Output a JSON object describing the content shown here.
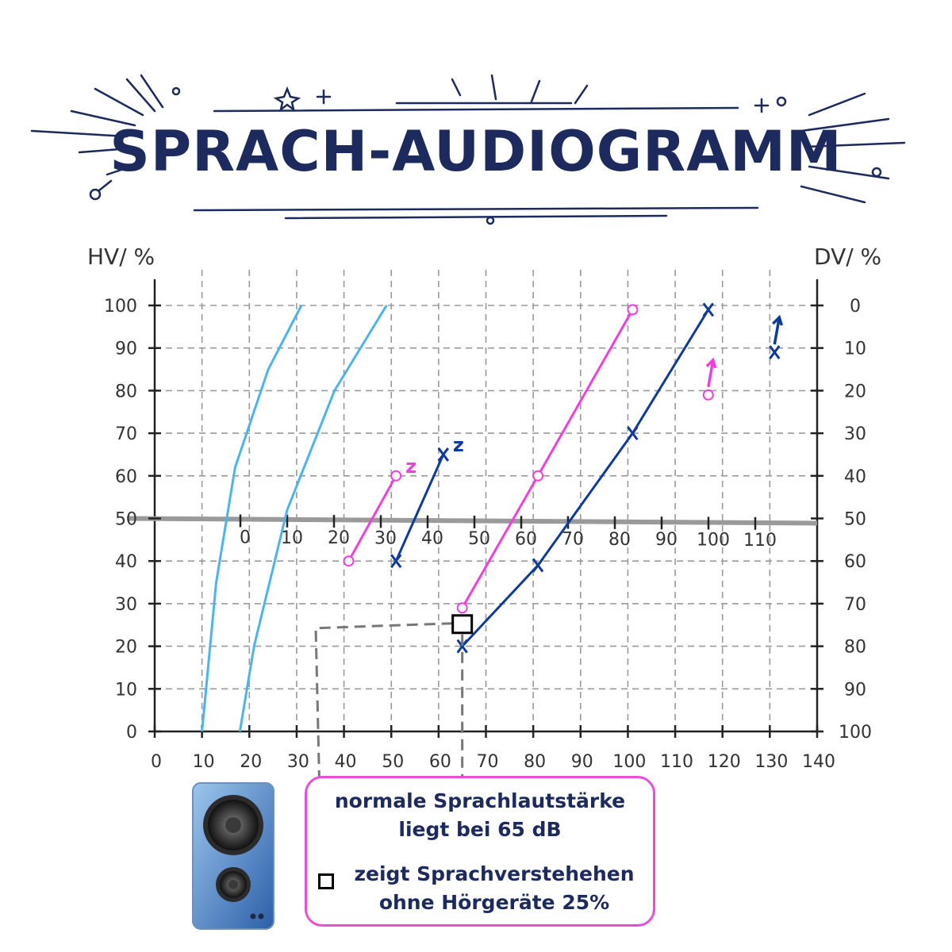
{
  "title": "SPRACH-AUDIOGRAMM",
  "chart_data": {
    "type": "line",
    "y_left_label": "HV/ %",
    "y_right_label": "DV/ %",
    "y_left_ticks": [
      "0",
      "10",
      "20",
      "30",
      "40",
      "50",
      "60",
      "70",
      "80",
      "90",
      "100"
    ],
    "y_right_ticks": [
      "100",
      "90",
      "80",
      "70",
      "60",
      "50",
      "40",
      "30",
      "20",
      "10",
      "0"
    ],
    "x_bottom_ticks": [
      "0",
      "10",
      "20",
      "30",
      "40",
      "50",
      "60",
      "70",
      "80",
      "90",
      "100",
      "110",
      "120",
      "130",
      "140"
    ],
    "x_middle_ticks": [
      "0",
      "10",
      "20",
      "30",
      "40",
      "50",
      "60",
      "70",
      "80",
      "90",
      "100",
      "110"
    ],
    "xlim": [
      0,
      140
    ],
    "ylim": [
      0,
      100
    ],
    "grid": true,
    "series": [
      {
        "style": "normal-curve",
        "color": "#4db3ef",
        "points": [
          [
            10,
            0
          ],
          [
            13,
            35
          ],
          [
            17,
            62
          ],
          [
            24,
            85
          ],
          [
            31,
            100
          ]
        ]
      },
      {
        "style": "normal-curve",
        "color": "#4db3ef",
        "points": [
          [
            18,
            0
          ],
          [
            21,
            20
          ],
          [
            28,
            52
          ],
          [
            38,
            80
          ],
          [
            49,
            100
          ]
        ]
      },
      {
        "style": "circle-line",
        "color": "#f03ee0",
        "points": [
          [
            41,
            40
          ],
          [
            51,
            60
          ]
        ],
        "note": "z"
      },
      {
        "style": "cross-line",
        "color": "#0d3b9c",
        "points": [
          [
            51,
            40
          ],
          [
            61,
            65
          ]
        ],
        "note": "z"
      },
      {
        "style": "circle-line",
        "color": "#f03ee0",
        "points": [
          [
            65,
            29
          ],
          [
            81,
            60
          ],
          [
            101,
            99
          ]
        ]
      },
      {
        "style": "cross-line",
        "color": "#0d3b9c",
        "points": [
          [
            65,
            20
          ],
          [
            81,
            39
          ],
          [
            101,
            70
          ],
          [
            117,
            99
          ]
        ]
      },
      {
        "style": "circle-point",
        "color": "#f03ee0",
        "points": [
          [
            117,
            79
          ]
        ],
        "arrow": true
      },
      {
        "style": "cross-point",
        "color": "#0d3b9c",
        "points": [
          [
            131,
            89
          ]
        ],
        "arrow": true
      }
    ],
    "speech_level_db": 65,
    "understanding_without_aid_pct": 25
  },
  "notes": {
    "line1": "normale Sprachlautstärke",
    "line2": "liegt bei 65 dB",
    "line3": "zeigt Sprachverstehehen",
    "line4": "ohne Hörgeräte 25%"
  }
}
